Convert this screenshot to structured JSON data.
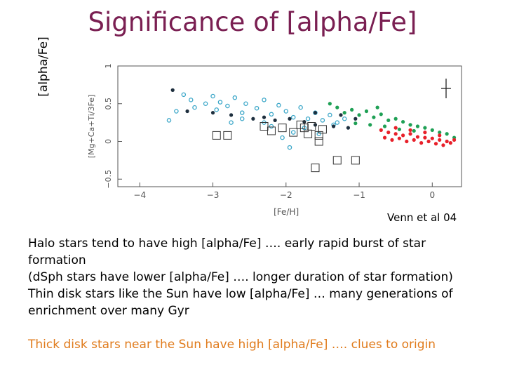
{
  "slide": {
    "title": "Significance of [alpha/Fe]",
    "side_label": "[alpha/Fe]",
    "credit": "Venn et al 04",
    "body": [
      "Halo stars tend to have high [alpha/Fe] …. early rapid burst of star formation",
      "(dSph stars have lower [alpha/Fe] …. longer duration of star formation)",
      "Thin disk stars like the Sun have low [alpha/Fe] … many generations of enrichment over many Gyr"
    ],
    "highlight": "Thick disk stars near the Sun have high [alpha/Fe] …. clues to origin",
    "highlight_color": "#e07b1c",
    "title_color": "#7a1f52"
  },
  "chart_data": {
    "type": "scatter",
    "xlabel": "[Fe/H]",
    "ylabel": "[Mg+Ca+Ti/3Fe]",
    "xlim": [
      -4.3,
      0.4
    ],
    "ylim": [
      -0.6,
      1.0
    ],
    "x_ticks": [
      "−4",
      "−3",
      "−2",
      "−1",
      "0"
    ],
    "y_ticks": [
      "−0.5",
      "0",
      "0.5",
      "1"
    ],
    "series": [
      {
        "marker": "open-circle",
        "color": "#3aa6c8",
        "points": [
          [
            -3.4,
            0.62
          ],
          [
            -3.3,
            0.55
          ],
          [
            -3.25,
            0.45
          ],
          [
            -3.1,
            0.5
          ],
          [
            -3.0,
            0.6
          ],
          [
            -2.95,
            0.42
          ],
          [
            -2.9,
            0.52
          ],
          [
            -2.8,
            0.47
          ],
          [
            -2.7,
            0.58
          ],
          [
            -2.6,
            0.38
          ],
          [
            -2.55,
            0.5
          ],
          [
            -2.4,
            0.44
          ],
          [
            -2.3,
            0.55
          ],
          [
            -2.2,
            0.36
          ],
          [
            -2.1,
            0.48
          ],
          [
            -2.0,
            0.4
          ],
          [
            -1.9,
            0.32
          ],
          [
            -1.8,
            0.45
          ],
          [
            -1.7,
            0.3
          ],
          [
            -1.6,
            0.38
          ],
          [
            -1.5,
            0.28
          ],
          [
            -1.4,
            0.35
          ],
          [
            -1.3,
            0.25
          ],
          [
            -1.2,
            0.3
          ],
          [
            -3.5,
            0.4
          ],
          [
            -3.6,
            0.28
          ],
          [
            -2.2,
            0.2
          ],
          [
            -1.9,
            0.12
          ],
          [
            -1.75,
            0.18
          ],
          [
            -1.55,
            0.1
          ],
          [
            -1.35,
            0.22
          ],
          [
            -2.6,
            0.3
          ],
          [
            -2.75,
            0.25
          ],
          [
            -2.05,
            0.05
          ],
          [
            -1.95,
            -0.08
          ],
          [
            -2.3,
            0.25
          ]
        ]
      },
      {
        "marker": "filled-dot",
        "color": "#1e2f3e",
        "points": [
          [
            -3.55,
            0.68
          ],
          [
            -3.35,
            0.4
          ],
          [
            -3.0,
            0.38
          ],
          [
            -2.75,
            0.35
          ],
          [
            -2.45,
            0.3
          ],
          [
            -2.3,
            0.32
          ],
          [
            -2.15,
            0.28
          ],
          [
            -1.95,
            0.3
          ],
          [
            -1.75,
            0.26
          ],
          [
            -1.6,
            0.22
          ],
          [
            -1.35,
            0.2
          ],
          [
            -1.15,
            0.18
          ],
          [
            -1.6,
            0.38
          ],
          [
            -1.25,
            0.35
          ],
          [
            -1.05,
            0.3
          ]
        ]
      },
      {
        "marker": "filled-dot",
        "color": "#1fa055",
        "points": [
          [
            -1.4,
            0.5
          ],
          [
            -1.3,
            0.45
          ],
          [
            -1.2,
            0.38
          ],
          [
            -1.1,
            0.42
          ],
          [
            -1.0,
            0.35
          ],
          [
            -0.9,
            0.4
          ],
          [
            -0.8,
            0.32
          ],
          [
            -0.7,
            0.36
          ],
          [
            -0.6,
            0.28
          ],
          [
            -0.5,
            0.3
          ],
          [
            -0.4,
            0.26
          ],
          [
            -0.3,
            0.22
          ],
          [
            -0.2,
            0.2
          ],
          [
            -0.1,
            0.18
          ],
          [
            0.0,
            0.15
          ],
          [
            0.1,
            0.12
          ],
          [
            0.2,
            0.1
          ],
          [
            0.3,
            0.05
          ],
          [
            -0.85,
            0.22
          ],
          [
            -0.65,
            0.2
          ],
          [
            -0.45,
            0.16
          ],
          [
            -0.25,
            0.14
          ],
          [
            -1.05,
            0.24
          ],
          [
            -0.75,
            0.45
          ]
        ]
      },
      {
        "marker": "filled-dot",
        "color": "#e8202a",
        "points": [
          [
            -0.7,
            0.15
          ],
          [
            -0.6,
            0.12
          ],
          [
            -0.5,
            0.1
          ],
          [
            -0.4,
            0.08
          ],
          [
            -0.3,
            0.1
          ],
          [
            -0.2,
            0.06
          ],
          [
            -0.1,
            0.05
          ],
          [
            0.0,
            0.04
          ],
          [
            0.1,
            0.02
          ],
          [
            0.2,
            0.0
          ],
          [
            0.3,
            0.02
          ],
          [
            -0.65,
            0.05
          ],
          [
            -0.55,
            0.02
          ],
          [
            -0.45,
            0.04
          ],
          [
            -0.35,
            0.0
          ],
          [
            -0.25,
            0.02
          ],
          [
            -0.15,
            -0.02
          ],
          [
            -0.05,
            0.0
          ],
          [
            0.05,
            -0.03
          ],
          [
            0.15,
            -0.05
          ],
          [
            0.25,
            -0.02
          ],
          [
            -0.5,
            0.18
          ],
          [
            -0.3,
            0.15
          ],
          [
            -0.1,
            0.12
          ],
          [
            0.1,
            0.08
          ]
        ]
      },
      {
        "marker": "open-square",
        "color": "#333333",
        "points": [
          [
            -2.95,
            0.08
          ],
          [
            -2.8,
            0.08
          ],
          [
            -2.3,
            0.2
          ],
          [
            -2.05,
            0.18
          ],
          [
            -1.9,
            0.12
          ],
          [
            -1.8,
            0.22
          ],
          [
            -1.7,
            0.1
          ],
          [
            -1.65,
            0.2
          ],
          [
            -1.55,
            0.0
          ],
          [
            -1.5,
            0.16
          ],
          [
            -2.2,
            0.14
          ],
          [
            -1.6,
            -0.35
          ],
          [
            -1.3,
            -0.25
          ],
          [
            -1.05,
            -0.25
          ],
          [
            -1.55,
            0.08
          ],
          [
            -1.75,
            0.18
          ]
        ]
      }
    ]
  }
}
